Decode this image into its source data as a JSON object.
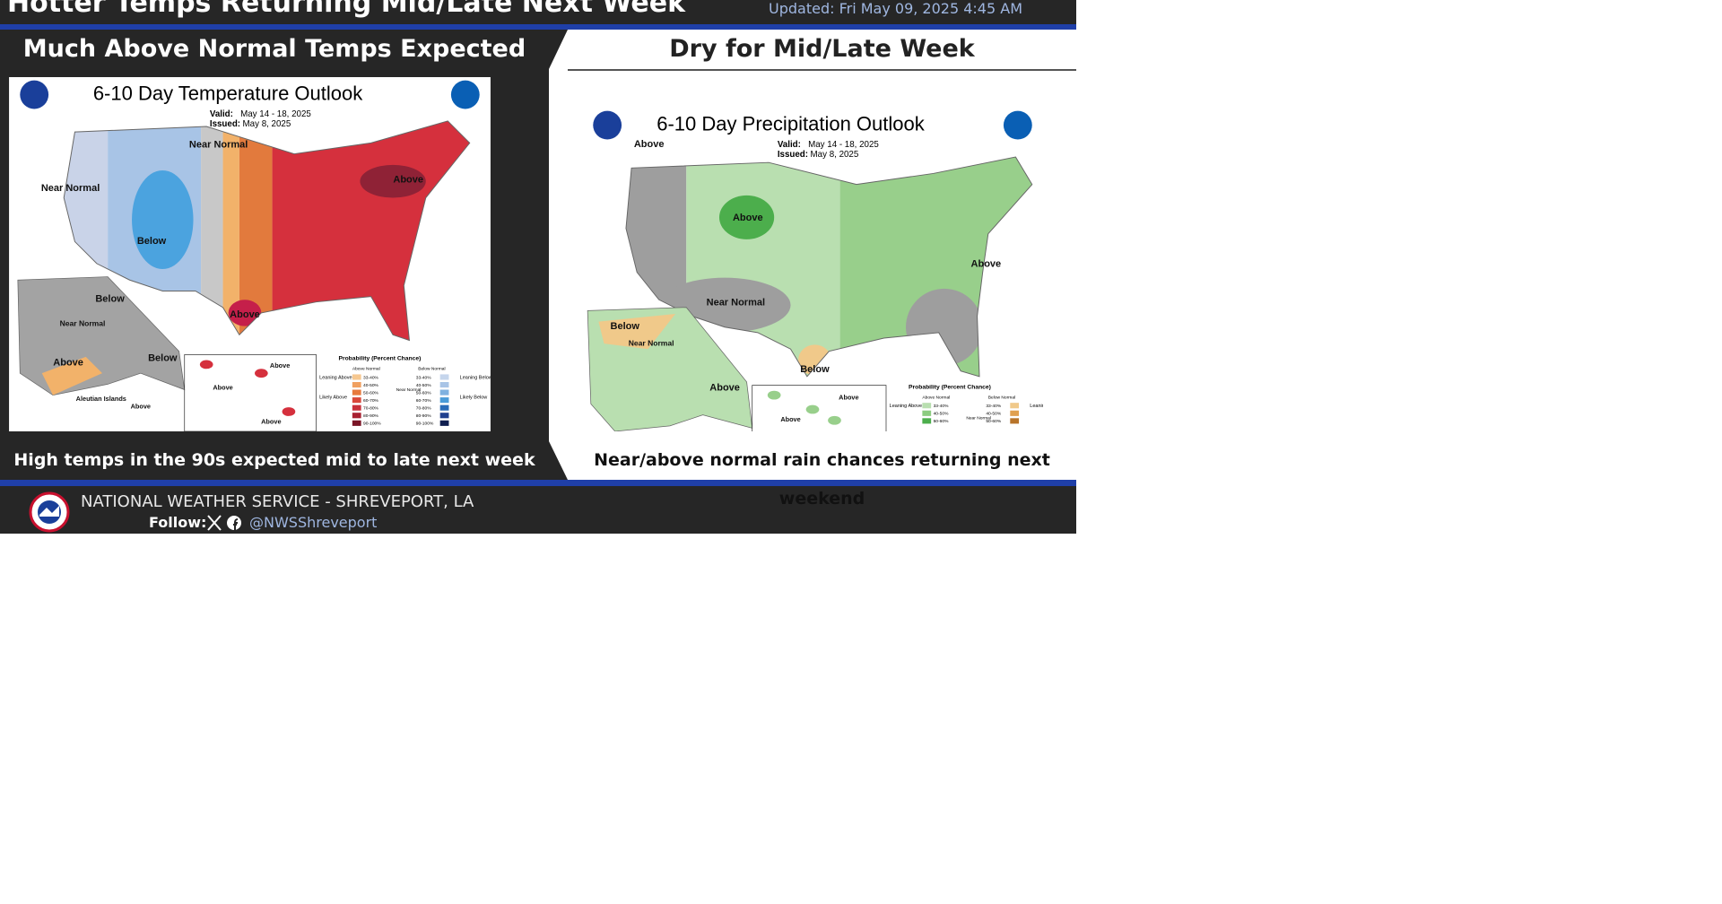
{
  "header": {
    "title": "Hotter Temps Returning Mid/Late Next Week",
    "updated": "Updated: Fri May 09, 2025 4:45 AM"
  },
  "panels": [
    {
      "heading": "Much Above Normal Temps Expected",
      "map": {
        "title": "6-10 Day Temperature Outlook",
        "valid_label": "Valid:",
        "valid": "May 14 - 18, 2025",
        "issued_label": "Issued:",
        "issued": "May 8, 2025",
        "labels": [
          "Near Normal",
          "Near Normal",
          "Below",
          "Above",
          "Above",
          "Below",
          "Near Normal",
          "Above",
          "Below",
          "Aleutian Islands",
          "Above",
          "Above",
          "Above",
          "Above"
        ],
        "legend": {
          "title": "Probability (Percent Chance)",
          "above": "Above Normal",
          "below": "Below Normal",
          "near": "Near Normal",
          "leaning_above": "Leaning Above",
          "likely_above": "Likely Above",
          "leaning_below": "Leaning Below",
          "likely_below": "Likely Below",
          "bins": [
            "33-40%",
            "40-50%",
            "50-60%",
            "60-70%",
            "70-80%",
            "80-90%",
            "90-100%"
          ]
        }
      },
      "caption": "High temps in the 90s expected mid to late next week"
    },
    {
      "heading": "Dry for Mid/Late Week",
      "map": {
        "title": "6-10 Day Precipitation Outlook",
        "valid_label": "Valid:",
        "valid": "May 14 - 18, 2025",
        "issued_label": "Issued:",
        "issued": "May 8, 2025",
        "labels": [
          "Above",
          "Above",
          "Above",
          "Near Normal",
          "Below",
          "Below",
          "Near Normal",
          "Above",
          "Above",
          "Above"
        ],
        "legend": {
          "title": "Probability (Percent Chance)",
          "above": "Above Normal",
          "below": "Below Normal",
          "near": "Near Normal",
          "leaning_above": "Leaning Above",
          "leaning_below": "Leaning Below",
          "bins": [
            "33-40%",
            "40-50%",
            "50-60%"
          ]
        }
      },
      "caption": "Near/above normal rain chances returning next weekend"
    }
  ],
  "footer": {
    "org": "NATIONAL WEATHER SERVICE - SHREVEPORT, LA",
    "follow": "Follow:",
    "handle": "@NWSShreveport"
  }
}
